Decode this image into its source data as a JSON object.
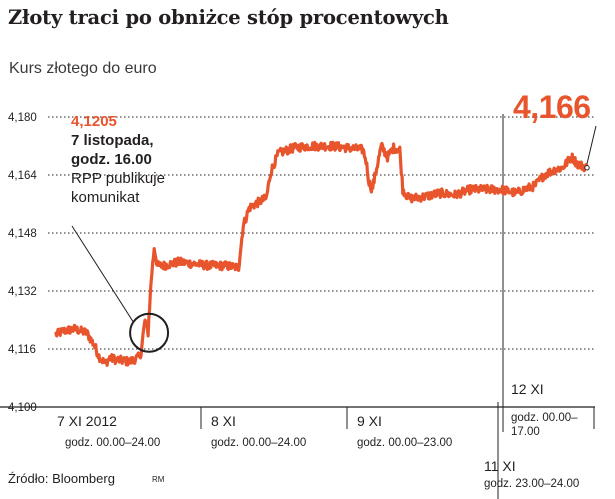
{
  "title": "Złoty traci po obniżce stóp procentowych",
  "subtitle": "Kurs złotego do euro",
  "chart_data": {
    "type": "line",
    "title": "Złoty traci po obniżce stóp procentowych",
    "subtitle": "Kurs złotego do euro",
    "ylim": [
      4.1,
      4.18
    ],
    "y_ticks": [
      "4,180",
      "4,164",
      "4,148",
      "4,132",
      "4,116",
      "4,100"
    ],
    "grid": "horizontal-dotted",
    "line_color": "#e8542c",
    "periods": [
      {
        "label": "7 XI 2012",
        "hours": "godz. 00.00–24.00"
      },
      {
        "label": "8 XI",
        "hours": "godz. 00.00–24.00"
      },
      {
        "label": "9 XI",
        "hours": "godz. 00.00–23.00"
      },
      {
        "label": "11 XI",
        "hours": "godz. 23.00–24.00"
      },
      {
        "label": "12 XI",
        "hours": "godz. 00.00–17.00"
      }
    ],
    "series": [
      {
        "values": [
          [
            0,
            4.12
          ],
          [
            5,
            4.121
          ],
          [
            12,
            4.1215
          ],
          [
            20,
            4.1205
          ],
          [
            25,
            4.117
          ],
          [
            28,
            4.114
          ],
          [
            32,
            4.112
          ],
          [
            35,
            4.1135
          ],
          [
            40,
            4.113
          ],
          [
            48,
            4.1125
          ],
          [
            55,
            4.114
          ],
          [
            58,
            4.124
          ],
          [
            60,
            4.1205
          ],
          [
            62,
            4.135
          ],
          [
            64,
            4.144
          ],
          [
            66,
            4.139
          ],
          [
            70,
            4.139
          ],
          [
            80,
            4.14
          ],
          [
            90,
            4.1395
          ],
          [
            100,
            4.139
          ],
          [
            110,
            4.139
          ],
          [
            119,
            4.1385
          ],
          [
            122,
            4.15
          ],
          [
            126,
            4.155
          ],
          [
            130,
            4.156
          ],
          [
            134,
            4.157
          ],
          [
            137,
            4.1575
          ],
          [
            140,
            4.165
          ],
          [
            145,
            4.17
          ],
          [
            155,
            4.1715
          ],
          [
            165,
            4.172
          ],
          [
            180,
            4.172
          ],
          [
            190,
            4.1715
          ],
          [
            200,
            4.171
          ],
          [
            202,
            4.168
          ],
          [
            204,
            4.162
          ],
          [
            206,
            4.16
          ],
          [
            209,
            4.166
          ],
          [
            212,
            4.172
          ],
          [
            216,
            4.169
          ],
          [
            220,
            4.1715
          ],
          [
            224,
            4.171
          ],
          [
            226,
            4.16
          ],
          [
            230,
            4.1575
          ],
          [
            240,
            4.158
          ],
          [
            250,
            4.159
          ],
          [
            260,
            4.1585
          ],
          [
            270,
            4.16
          ],
          [
            280,
            4.16
          ],
          [
            290,
            4.16
          ],
          [
            300,
            4.159
          ],
          [
            305,
            4.16
          ],
          [
            312,
            4.161
          ],
          [
            318,
            4.164
          ],
          [
            325,
            4.1655
          ],
          [
            330,
            4.166
          ],
          [
            336,
            4.169
          ],
          [
            340,
            4.167
          ],
          [
            346,
            4.166
          ]
        ]
      }
    ],
    "annotations": {
      "value": "4,1205",
      "date": "7 listopada,",
      "time": "godz. 16.00",
      "line1": "RPP publikuje",
      "line2": "komunikat"
    },
    "last_value": "4,166"
  },
  "source": "Źródło: Bloomberg",
  "credit": "RM"
}
